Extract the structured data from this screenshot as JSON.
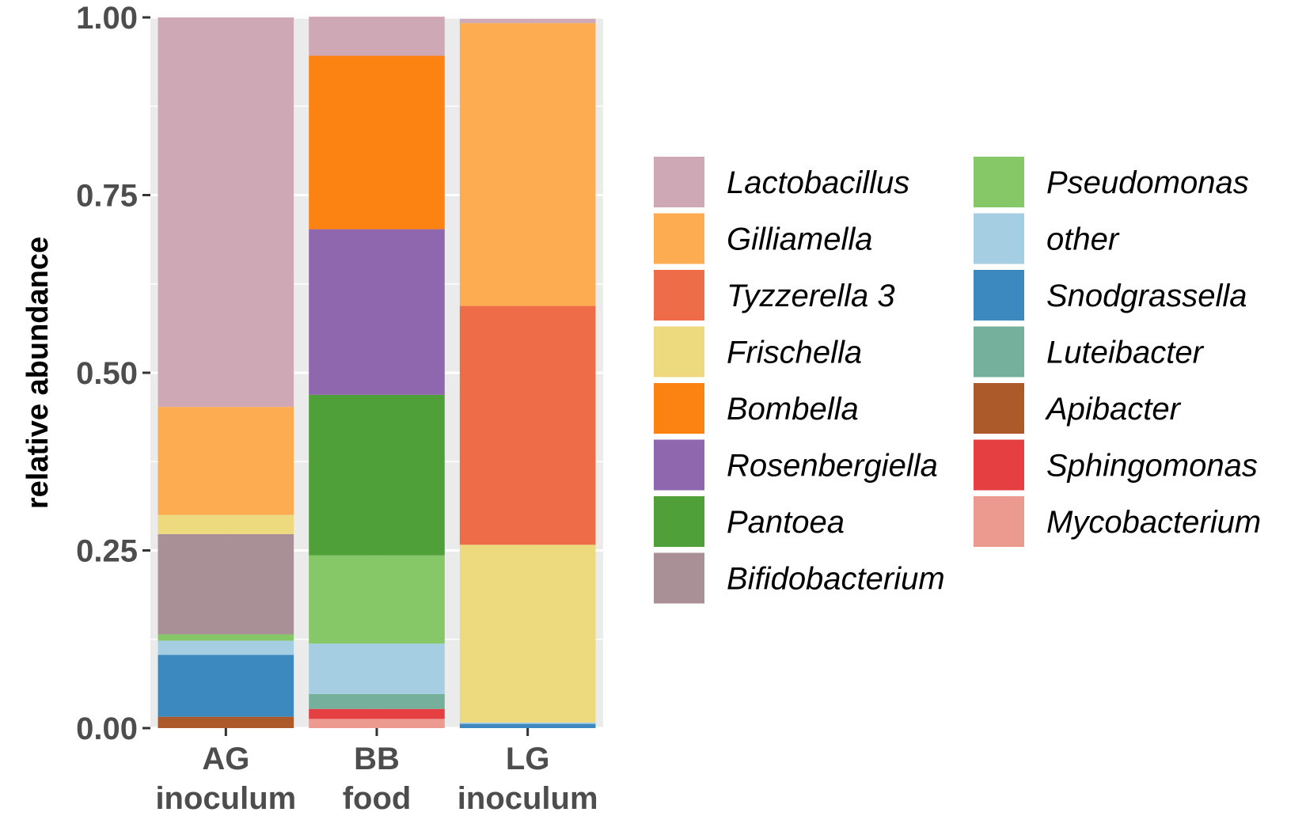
{
  "chart_data": {
    "type": "bar",
    "stacked": true,
    "ylabel": "relative abundance",
    "xlabel": "",
    "ylim": [
      0,
      1
    ],
    "yticks": [
      "0.00",
      "0.25",
      "0.50",
      "0.75",
      "1.00"
    ],
    "grid": true,
    "legend_position": "right",
    "categories": [
      [
        "AG",
        "inoculum"
      ],
      [
        "BB",
        "food"
      ],
      [
        "LG",
        "inoculum"
      ]
    ],
    "series": [
      {
        "name": "Lactobacillus",
        "color": "#CFA8B6",
        "values": [
          0.548,
          0.055,
          0.006
        ]
      },
      {
        "name": "Gilliamella",
        "color": "#FDAC52",
        "values": [
          0.152,
          0.0,
          0.398
        ]
      },
      {
        "name": "Tyzzerella 3",
        "color": "#EF6C48",
        "values": [
          0.0,
          0.0,
          0.336
        ]
      },
      {
        "name": "Frischella",
        "color": "#EDDA7F",
        "values": [
          0.027,
          0.0,
          0.25
        ]
      },
      {
        "name": "Bombella",
        "color": "#FC8312",
        "values": [
          0.0,
          0.244,
          0.0
        ]
      },
      {
        "name": "Rosenbergiella",
        "color": "#8E67AF",
        "values": [
          0.0,
          0.233,
          0.0
        ]
      },
      {
        "name": "Pantoea",
        "color": "#50A03A",
        "values": [
          0.0,
          0.226,
          0.0
        ]
      },
      {
        "name": "Bifidobacterium",
        "color": "#A98F96",
        "values": [
          0.141,
          0.0,
          0.0
        ]
      },
      {
        "name": "Pseudomonas",
        "color": "#86C867",
        "values": [
          0.009,
          0.124,
          0.0
        ]
      },
      {
        "name": "other",
        "color": "#A6CEE3",
        "values": [
          0.02,
          0.071,
          0.002
        ]
      },
      {
        "name": "Snodgrassella",
        "color": "#3B89BF",
        "values": [
          0.087,
          0.0,
          0.006
        ]
      },
      {
        "name": "Luteibacter",
        "color": "#74B09B",
        "values": [
          0.0,
          0.021,
          0.0
        ]
      },
      {
        "name": "Apibacter",
        "color": "#AD5A2B",
        "values": [
          0.016,
          0.0,
          0.0
        ]
      },
      {
        "name": "Sphingomonas",
        "color": "#E53F41",
        "values": [
          0.0,
          0.014,
          0.0
        ]
      },
      {
        "name": "Mycobacterium",
        "color": "#EC9990",
        "values": [
          0.0,
          0.013,
          0.0
        ]
      }
    ],
    "legend_columns": [
      [
        "Lactobacillus",
        "Gilliamella",
        "Tyzzerella 3",
        "Frischella",
        "Bombella",
        "Rosenbergiella",
        "Pantoea",
        "Bifidobacterium"
      ],
      [
        "Pseudomonas",
        "other",
        "Snodgrassella",
        "Luteibacter",
        "Apibacter",
        "Sphingomonas",
        "Mycobacterium"
      ]
    ],
    "colors": {
      "panel_background": "#EBEBEB",
      "grid_line": "#FFFFFF",
      "tick_text": "#4D4D4D",
      "tick_mark": "#333333"
    }
  }
}
